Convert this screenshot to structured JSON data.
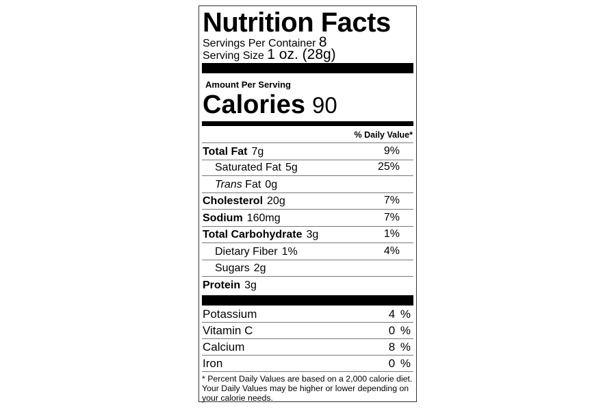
{
  "title": "Nutrition Facts",
  "servings_per_container": {
    "label": "Servings Per Container",
    "value": "8"
  },
  "serving_size": {
    "label": "Serving Size",
    "value": "1 oz. (28g)"
  },
  "amount_per_serving": "Amount Per Serving",
  "calories": {
    "label": "Calories",
    "value": "90"
  },
  "daily_value_header": "% Daily Value*",
  "nutrients": [
    {
      "name": "Total Fat",
      "amount": "7g",
      "dv": "9%",
      "bold": true
    },
    {
      "name": "Saturated Fat",
      "amount": "5g",
      "dv": "25%",
      "indent": true
    },
    {
      "name": "Trans",
      "name_suffix": "Fat",
      "amount": "0g",
      "dv": "",
      "indent": true
    },
    {
      "name": "Cholesterol",
      "amount": "20g",
      "dv": "7%",
      "bold": true
    },
    {
      "name": "Sodium",
      "amount": "160mg",
      "dv": "7%",
      "bold": true
    },
    {
      "name": "Total Carbohydrate",
      "amount": "3g",
      "dv": "1%",
      "bold": true
    },
    {
      "name": "Dietary Fiber",
      "amount": "1%",
      "dv": "4%",
      "indent": true
    },
    {
      "name": "Sugars",
      "amount": "2g",
      "dv": "",
      "indent": true
    },
    {
      "name": "Protein",
      "amount": "3g",
      "dv": "",
      "bold": true
    }
  ],
  "minerals": [
    {
      "name": "Potassium",
      "dv": "4 %"
    },
    {
      "name": "Vitamin C",
      "dv": "0 %"
    },
    {
      "name": "Calcium",
      "dv": "8 %"
    },
    {
      "name": "Iron",
      "dv": "0 %"
    }
  ],
  "footnote": "* Percent Daily Values are based on a 2,000 calorie diet. Your Daily Values may be higher or lower depending on your calorie needs."
}
